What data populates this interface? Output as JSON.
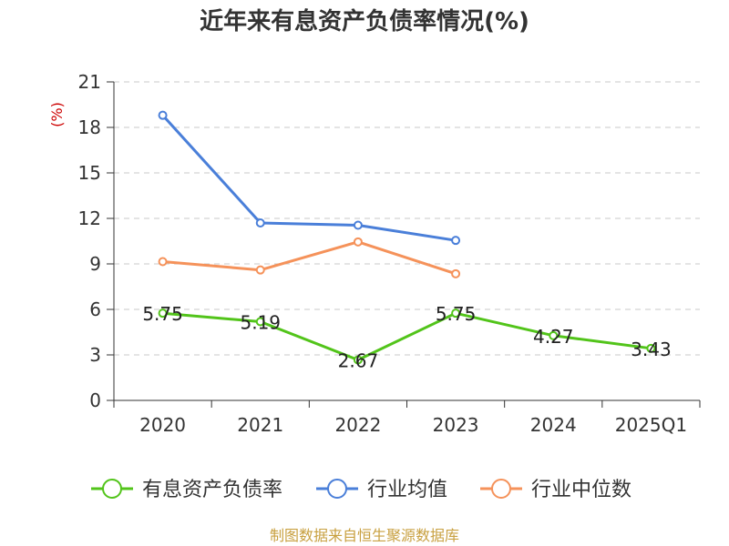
{
  "chart_data": {
    "type": "line",
    "title": "近年来有息资产负债率情况(%)",
    "ylabel": "(%)",
    "xlabel": "",
    "categories": [
      "2020",
      "2021",
      "2022",
      "2023",
      "2024",
      "2025Q1"
    ],
    "ylim": [
      0,
      21
    ],
    "yticks": [
      0,
      3,
      6,
      9,
      12,
      15,
      18,
      21
    ],
    "grid": true,
    "legend_position": "bottom",
    "series": [
      {
        "name": "有息资产负债率",
        "color": "#52c41a",
        "values": [
          5.75,
          5.19,
          2.67,
          5.75,
          4.27,
          3.43
        ],
        "labels": [
          "5.75",
          "5.19",
          "2.67",
          "5.75",
          "4.27",
          "3.43"
        ]
      },
      {
        "name": "行业均值",
        "color": "#4a7fd9",
        "values": [
          18.8,
          11.7,
          11.55,
          10.55,
          null,
          null
        ]
      },
      {
        "name": "行业中位数",
        "color": "#f5925a",
        "values": [
          9.15,
          8.6,
          10.45,
          8.35,
          null,
          null
        ]
      }
    ],
    "source": "制图数据来自恒生聚源数据库"
  }
}
